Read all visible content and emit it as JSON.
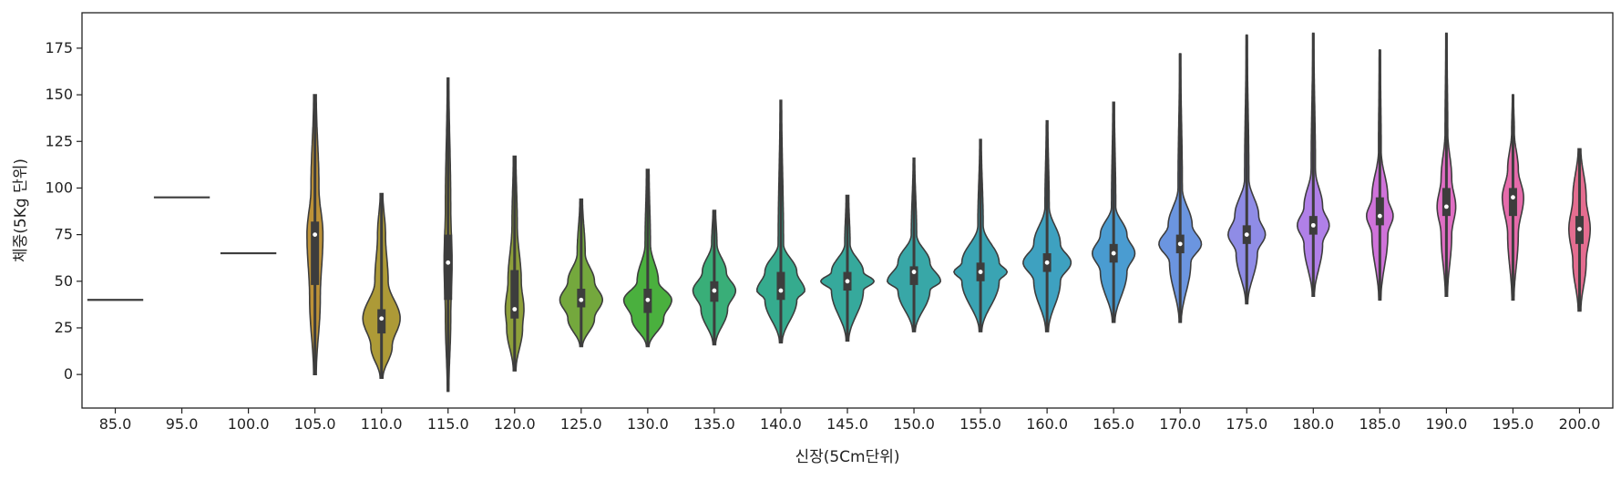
{
  "chart_data": {
    "type": "violin",
    "xlabel": "신장(5Cm단위)",
    "ylabel": "체중(5Kg 단위)",
    "ylim": [
      -18,
      194
    ],
    "yticks": [
      0,
      25,
      50,
      75,
      100,
      125,
      150,
      175
    ],
    "grid": false,
    "legend": "none",
    "categories": [
      "85.0",
      "95.0",
      "100.0",
      "105.0",
      "110.0",
      "115.0",
      "120.0",
      "125.0",
      "130.0",
      "135.0",
      "140.0",
      "145.0",
      "150.0",
      "155.0",
      "160.0",
      "165.0",
      "170.0",
      "175.0",
      "180.0",
      "185.0",
      "190.0",
      "195.0",
      "200.0"
    ],
    "violins": [
      {
        "category": "85.0",
        "color": "#e8766a",
        "min": 40,
        "max": 40,
        "q1": 40,
        "median": 40,
        "q3": 40,
        "density": [
          [
            40,
            1
          ]
        ]
      },
      {
        "category": "95.0",
        "color": "#df7f41",
        "min": 95,
        "max": 95,
        "q1": 95,
        "median": 95,
        "q3": 95,
        "density": [
          [
            95,
            1
          ]
        ]
      },
      {
        "category": "100.0",
        "color": "#d08a3a",
        "min": 65,
        "max": 65,
        "q1": 65,
        "median": 65,
        "q3": 65,
        "density": [
          [
            65,
            1
          ]
        ]
      },
      {
        "category": "105.0",
        "color": "#bd9237",
        "min": 0,
        "max": 150,
        "q1": 48,
        "median": 75,
        "q3": 82,
        "density": [
          [
            0,
            0.05
          ],
          [
            40,
            0.2
          ],
          [
            75,
            0.3
          ],
          [
            100,
            0.15
          ],
          [
            150,
            0.05
          ]
        ]
      },
      {
        "category": "110.0",
        "color": "#ad9a37",
        "min": -2,
        "max": 97,
        "q1": 22,
        "median": 30,
        "q3": 35,
        "density": [
          [
            -2,
            0.05
          ],
          [
            15,
            0.4
          ],
          [
            30,
            0.7
          ],
          [
            50,
            0.25
          ],
          [
            75,
            0.15
          ],
          [
            97,
            0.05
          ]
        ]
      },
      {
        "category": "115.0",
        "color": "#a39c38",
        "min": -9,
        "max": 159,
        "q1": 40,
        "median": 60,
        "q3": 75,
        "density": [
          [
            -9,
            0.03
          ],
          [
            30,
            0.1
          ],
          [
            60,
            0.15
          ],
          [
            90,
            0.1
          ],
          [
            159,
            0.03
          ]
        ]
      },
      {
        "category": "120.0",
        "color": "#8ea03a",
        "min": 2,
        "max": 117,
        "q1": 30,
        "median": 35,
        "q3": 56,
        "density": [
          [
            2,
            0.05
          ],
          [
            25,
            0.3
          ],
          [
            35,
            0.35
          ],
          [
            50,
            0.25
          ],
          [
            80,
            0.1
          ],
          [
            117,
            0.05
          ]
        ]
      },
      {
        "category": "125.0",
        "color": "#74a83d",
        "min": 15,
        "max": 94,
        "q1": 36,
        "median": 40,
        "q3": 46,
        "density": [
          [
            15,
            0.05
          ],
          [
            30,
            0.5
          ],
          [
            40,
            0.8
          ],
          [
            50,
            0.5
          ],
          [
            65,
            0.15
          ],
          [
            94,
            0.05
          ]
        ]
      },
      {
        "category": "130.0",
        "color": "#4ab03e",
        "min": 15,
        "max": 110,
        "q1": 33,
        "median": 40,
        "q3": 46,
        "density": [
          [
            15,
            0.05
          ],
          [
            30,
            0.6
          ],
          [
            40,
            0.9
          ],
          [
            50,
            0.4
          ],
          [
            70,
            0.1
          ],
          [
            110,
            0.05
          ]
        ]
      },
      {
        "category": "135.0",
        "color": "#39ae78",
        "min": 16,
        "max": 88,
        "q1": 39,
        "median": 45,
        "q3": 50,
        "density": [
          [
            16,
            0.05
          ],
          [
            35,
            0.5
          ],
          [
            45,
            0.8
          ],
          [
            55,
            0.45
          ],
          [
            70,
            0.1
          ],
          [
            88,
            0.05
          ]
        ]
      },
      {
        "category": "140.0",
        "color": "#35ab8e",
        "min": 17,
        "max": 147,
        "q1": 40,
        "median": 45,
        "q3": 55,
        "density": [
          [
            17,
            0.05
          ],
          [
            40,
            0.6
          ],
          [
            45,
            0.9
          ],
          [
            55,
            0.6
          ],
          [
            70,
            0.1
          ],
          [
            147,
            0.03
          ]
        ]
      },
      {
        "category": "145.0",
        "color": "#36a99c",
        "min": 18,
        "max": 96,
        "q1": 45,
        "median": 50,
        "q3": 55,
        "density": [
          [
            18,
            0.05
          ],
          [
            45,
            0.6
          ],
          [
            50,
            1.0
          ],
          [
            55,
            0.6
          ],
          [
            70,
            0.1
          ],
          [
            96,
            0.05
          ]
        ]
      },
      {
        "category": "150.0",
        "color": "#38a7a7",
        "min": 23,
        "max": 116,
        "q1": 48,
        "median": 55,
        "q3": 58,
        "density": [
          [
            23,
            0.05
          ],
          [
            45,
            0.6
          ],
          [
            50,
            1.0
          ],
          [
            60,
            0.6
          ],
          [
            75,
            0.1
          ],
          [
            116,
            0.03
          ]
        ]
      },
      {
        "category": "155.0",
        "color": "#3aa4b3",
        "min": 23,
        "max": 126,
        "q1": 50,
        "median": 55,
        "q3": 60,
        "density": [
          [
            23,
            0.05
          ],
          [
            50,
            0.7
          ],
          [
            55,
            1.0
          ],
          [
            60,
            0.7
          ],
          [
            80,
            0.1
          ],
          [
            126,
            0.03
          ]
        ]
      },
      {
        "category": "160.0",
        "color": "#3ea1c0",
        "min": 23,
        "max": 136,
        "q1": 55,
        "median": 60,
        "q3": 65,
        "density": [
          [
            23,
            0.05
          ],
          [
            50,
            0.5
          ],
          [
            60,
            0.9
          ],
          [
            70,
            0.5
          ],
          [
            90,
            0.08
          ],
          [
            136,
            0.03
          ]
        ]
      },
      {
        "category": "165.0",
        "color": "#4a9cd1",
        "min": 28,
        "max": 146,
        "q1": 60,
        "median": 65,
        "q3": 70,
        "density": [
          [
            28,
            0.05
          ],
          [
            55,
            0.5
          ],
          [
            65,
            0.8
          ],
          [
            75,
            0.5
          ],
          [
            90,
            0.08
          ],
          [
            146,
            0.03
          ]
        ]
      },
      {
        "category": "170.0",
        "color": "#6b95e0",
        "min": 28,
        "max": 172,
        "q1": 65,
        "median": 70,
        "q3": 75,
        "density": [
          [
            28,
            0.04
          ],
          [
            60,
            0.4
          ],
          [
            70,
            0.8
          ],
          [
            80,
            0.45
          ],
          [
            100,
            0.08
          ],
          [
            172,
            0.02
          ]
        ]
      },
      {
        "category": "175.0",
        "color": "#8f8ce6",
        "min": 38,
        "max": 182,
        "q1": 70,
        "median": 75,
        "q3": 80,
        "density": [
          [
            38,
            0.04
          ],
          [
            65,
            0.4
          ],
          [
            75,
            0.7
          ],
          [
            85,
            0.45
          ],
          [
            105,
            0.08
          ],
          [
            182,
            0.02
          ]
        ]
      },
      {
        "category": "180.0",
        "color": "#b080e8",
        "min": 42,
        "max": 183,
        "q1": 75,
        "median": 80,
        "q3": 85,
        "density": [
          [
            42,
            0.04
          ],
          [
            70,
            0.35
          ],
          [
            80,
            0.6
          ],
          [
            90,
            0.35
          ],
          [
            110,
            0.08
          ],
          [
            183,
            0.02
          ]
        ]
      },
      {
        "category": "185.0",
        "color": "#d073da",
        "min": 40,
        "max": 174,
        "q1": 80,
        "median": 85,
        "q3": 95,
        "density": [
          [
            40,
            0.04
          ],
          [
            75,
            0.3
          ],
          [
            85,
            0.5
          ],
          [
            95,
            0.3
          ],
          [
            120,
            0.05
          ],
          [
            174,
            0.02
          ]
        ]
      },
      {
        "category": "190.0",
        "color": "#e06ec4",
        "min": 42,
        "max": 183,
        "q1": 85,
        "median": 90,
        "q3": 100,
        "density": [
          [
            42,
            0.04
          ],
          [
            75,
            0.2
          ],
          [
            90,
            0.35
          ],
          [
            105,
            0.2
          ],
          [
            130,
            0.05
          ],
          [
            183,
            0.02
          ]
        ]
      },
      {
        "category": "195.0",
        "color": "#e66bab",
        "min": 40,
        "max": 150,
        "q1": 85,
        "median": 95,
        "q3": 100,
        "density": [
          [
            40,
            0.04
          ],
          [
            75,
            0.2
          ],
          [
            95,
            0.4
          ],
          [
            110,
            0.2
          ],
          [
            130,
            0.05
          ],
          [
            150,
            0.02
          ]
        ]
      },
      {
        "category": "200.0",
        "color": "#e56d90",
        "min": 34,
        "max": 121,
        "q1": 70,
        "median": 78,
        "q3": 85,
        "density": [
          [
            34,
            0.05
          ],
          [
            60,
            0.25
          ],
          [
            78,
            0.4
          ],
          [
            95,
            0.25
          ],
          [
            121,
            0.05
          ]
        ]
      }
    ]
  }
}
